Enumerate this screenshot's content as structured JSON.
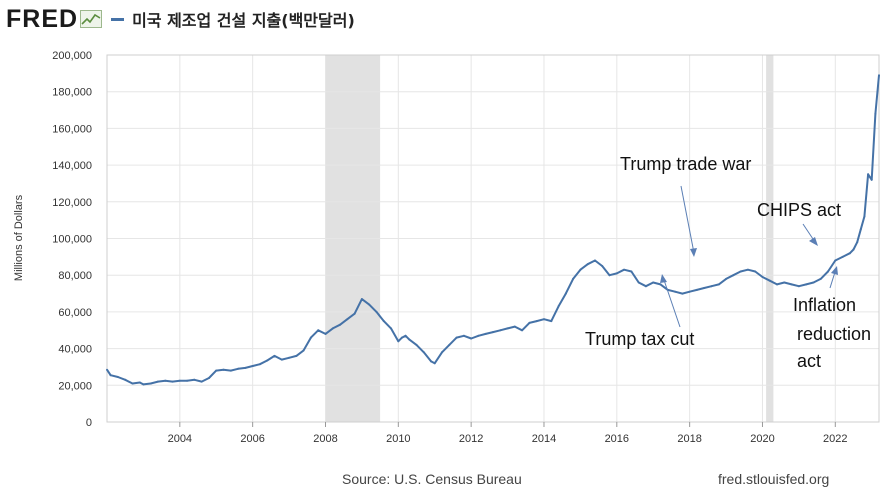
{
  "header": {
    "logo_text": "FRED",
    "legend_label": "미국 제조업 건설 지출(백만달러)",
    "series_color": "#4572a7"
  },
  "footer": {
    "source": "Source: U.S. Census Bureau",
    "url": "fred.stlouisfed.org"
  },
  "annotations": {
    "trade_war": "Trump trade war",
    "chips": "CHIPS act",
    "tax_cut": "Trump tax cut",
    "ira_line1": "Inflation",
    "ira_line2": "reduction",
    "ira_line3": "act"
  },
  "chart_data": {
    "type": "line",
    "title": "미국 제조업 건설 지출(백만달러)",
    "ylabel": "Millions of Dollars",
    "xlabel": "",
    "xlim": [
      2002.0,
      2023.2
    ],
    "ylim": [
      0,
      200000
    ],
    "grid": true,
    "x_ticks": [
      "2004",
      "2006",
      "2008",
      "2010",
      "2012",
      "2014",
      "2016",
      "2018",
      "2020",
      "2022"
    ],
    "y_ticks": [
      "0",
      "20,000",
      "40,000",
      "60,000",
      "80,000",
      "100,000",
      "120,000",
      "140,000",
      "160,000",
      "180,000",
      "200,000"
    ],
    "recessions": [
      [
        2008.0,
        2009.5
      ],
      [
        2020.1,
        2020.3
      ]
    ],
    "series": [
      {
        "name": "미국 제조업 건설 지출(백만달러)",
        "x": [
          2002.0,
          2002.1,
          2002.3,
          2002.5,
          2002.7,
          2002.9,
          2003.0,
          2003.2,
          2003.4,
          2003.6,
          2003.8,
          2004.0,
          2004.2,
          2004.4,
          2004.6,
          2004.8,
          2005.0,
          2005.2,
          2005.4,
          2005.6,
          2005.8,
          2006.0,
          2006.2,
          2006.4,
          2006.6,
          2006.8,
          2007.0,
          2007.2,
          2007.4,
          2007.6,
          2007.8,
          2008.0,
          2008.2,
          2008.4,
          2008.6,
          2008.8,
          2009.0,
          2009.2,
          2009.4,
          2009.6,
          2009.8,
          2010.0,
          2010.1,
          2010.2,
          2010.3,
          2010.5,
          2010.7,
          2010.9,
          2011.0,
          2011.2,
          2011.4,
          2011.6,
          2011.8,
          2012.0,
          2012.2,
          2012.4,
          2012.6,
          2012.8,
          2013.0,
          2013.2,
          2013.4,
          2013.6,
          2013.8,
          2014.0,
          2014.2,
          2014.4,
          2014.6,
          2014.8,
          2015.0,
          2015.2,
          2015.4,
          2015.6,
          2015.8,
          2016.0,
          2016.2,
          2016.4,
          2016.6,
          2016.8,
          2017.0,
          2017.2,
          2017.4,
          2017.6,
          2017.8,
          2018.0,
          2018.2,
          2018.4,
          2018.6,
          2018.8,
          2019.0,
          2019.2,
          2019.4,
          2019.6,
          2019.8,
          2020.0,
          2020.2,
          2020.4,
          2020.6,
          2020.8,
          2021.0,
          2021.2,
          2021.4,
          2021.6,
          2021.8,
          2022.0,
          2022.2,
          2022.4,
          2022.5,
          2022.6,
          2022.7,
          2022.8,
          2022.9,
          2023.0,
          2023.1,
          2023.2
        ],
        "values": [
          28500,
          25500,
          24500,
          23000,
          21000,
          21500,
          20500,
          21000,
          22000,
          22500,
          22000,
          22500,
          22500,
          23000,
          22000,
          24000,
          28000,
          28500,
          28000,
          29000,
          29500,
          30500,
          31500,
          33500,
          36000,
          34000,
          35000,
          36000,
          39000,
          46000,
          50000,
          48000,
          51000,
          53000,
          56000,
          59000,
          67000,
          64000,
          60000,
          55000,
          51000,
          44000,
          46000,
          47000,
          45000,
          42000,
          38000,
          33000,
          32000,
          38000,
          42000,
          46000,
          47000,
          45500,
          47000,
          48000,
          49000,
          50000,
          51000,
          52000,
          50000,
          54000,
          55000,
          56000,
          55000,
          63000,
          70000,
          78000,
          83000,
          86000,
          88000,
          85000,
          80000,
          81000,
          83000,
          82000,
          76000,
          74000,
          76000,
          75000,
          72000,
          71000,
          70000,
          71000,
          72000,
          73000,
          74000,
          75000,
          78000,
          80000,
          82000,
          83000,
          82000,
          79000,
          77000,
          75000,
          76000,
          75000,
          74000,
          75000,
          76000,
          78000,
          82000,
          88000,
          90000,
          92000,
          94000,
          98000,
          105000,
          112000,
          135000,
          132000,
          168000,
          189000
        ]
      }
    ]
  }
}
